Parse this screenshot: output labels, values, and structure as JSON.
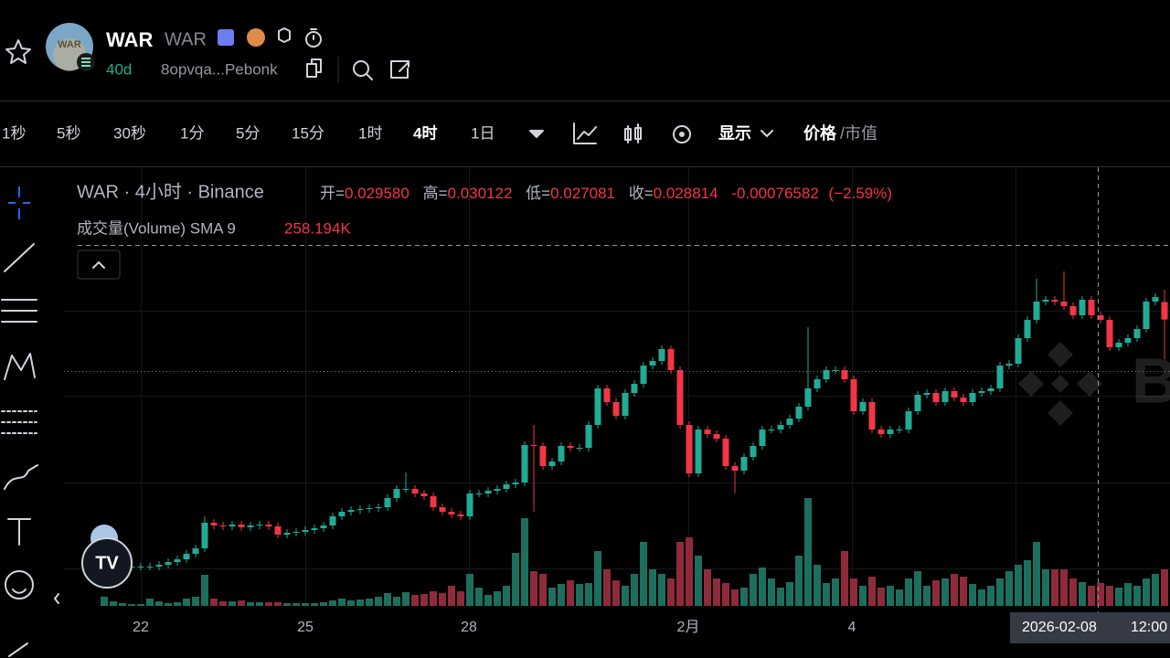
{
  "header": {
    "symbol": "WAR",
    "symbol_sub": "WAR",
    "age": "40d",
    "address": "8opvqa...Pebonk"
  },
  "toolbar": {
    "intervals": [
      "1秒",
      "5秒",
      "30秒",
      "1分",
      "5分",
      "15分",
      "1时",
      "4时",
      "1日"
    ],
    "display_menu": "显示",
    "price_toggle": "价格",
    "market_cap_toggle": "/市值"
  },
  "legend": {
    "title": "WAR · 4小时 · Binance",
    "open_label": "开=",
    "open": "0.029580",
    "high_label": "高=",
    "high": "0.030122",
    "low_label": "低=",
    "low": "0.027081",
    "close_label": "收=",
    "close": "0.028814",
    "change": "-0.00076582",
    "change_pct": "(−2.59%)"
  },
  "volume_legend": {
    "label": "成交量(Volume) SMA 9",
    "value": "258.194K"
  },
  "chart_data": {
    "type": "candlestick",
    "up_color": "#22ab94",
    "down_color": "#f23645",
    "volume_up_color": "#1d6f5d",
    "volume_down_color": "#8e2b3b",
    "open": [
      0.018,
      0.018,
      0.018,
      0.018,
      0.018,
      0.018,
      0.018,
      0.01808,
      0.0182,
      0.01832,
      0.01856,
      0.0188,
      0.01992,
      0.0198,
      0.01976,
      0.01984,
      0.01972,
      0.0198,
      0.01984,
      0.01976,
      0.0194,
      0.01948,
      0.01952,
      0.0196,
      0.01968,
      0.0198,
      0.0202,
      0.0204,
      0.02048,
      0.02052,
      0.02056,
      0.0206,
      0.021,
      0.0214,
      0.0214,
      0.0212,
      0.02108,
      0.0206,
      0.0204,
      0.02028,
      0.0202,
      0.0212,
      0.0212,
      0.02132,
      0.0214,
      0.0216,
      0.02168,
      0.02332,
      0.02328,
      0.0224,
      0.0226,
      0.02328,
      0.0232,
      0.0232,
      0.0242,
      0.0258,
      0.0252,
      0.0246,
      0.0256,
      0.026,
      0.0268,
      0.027,
      0.02752,
      0.0266,
      0.0242,
      0.02208,
      0.024,
      0.0238,
      0.0236,
      0.0224,
      0.0222,
      0.0228,
      0.02328,
      0.024,
      0.024,
      0.0242,
      0.02448,
      0.025,
      0.0258,
      0.0262,
      0.0266,
      0.0266,
      0.0262,
      0.0248,
      0.0252,
      0.024,
      0.0238,
      0.024,
      0.024,
      0.0248,
      0.02552,
      0.0256,
      0.0252,
      0.02568,
      0.0254,
      0.0252,
      0.0256,
      0.02568,
      0.0258,
      0.0268,
      0.02688,
      0.028,
      0.0288,
      0.0296,
      0.02968,
      0.0296,
      0.0294,
      0.029,
      0.02968,
      0.029,
      0.0288,
      0.0276,
      0.0278,
      0.028,
      0.0284,
      0.0296,
      0.02958
    ],
    "high": [
      0.01816,
      0.01816,
      0.01816,
      0.01816,
      0.01816,
      0.01816,
      0.01824,
      0.01836,
      0.01848,
      0.01872,
      0.01896,
      0.0202,
      0.02008,
      0.01996,
      0.02,
      0.02,
      0.01996,
      0.02,
      0.02,
      0.01992,
      0.01964,
      0.01968,
      0.01976,
      0.01984,
      0.01996,
      0.02036,
      0.02056,
      0.02064,
      0.02068,
      0.02072,
      0.02076,
      0.02116,
      0.02156,
      0.02212,
      0.02156,
      0.02136,
      0.02124,
      0.02076,
      0.02056,
      0.02044,
      0.02136,
      0.02136,
      0.02148,
      0.02156,
      0.02176,
      0.02184,
      0.02348,
      0.0242,
      0.02344,
      0.02276,
      0.02344,
      0.02344,
      0.02336,
      0.02436,
      0.02596,
      0.02596,
      0.02536,
      0.02576,
      0.02616,
      0.02696,
      0.02716,
      0.02768,
      0.02768,
      0.02676,
      0.02436,
      0.02416,
      0.02416,
      0.02396,
      0.02376,
      0.02256,
      0.02296,
      0.02344,
      0.02416,
      0.02416,
      0.02436,
      0.02464,
      0.02516,
      0.02848,
      0.02636,
      0.02676,
      0.02676,
      0.02676,
      0.02636,
      0.02536,
      0.02536,
      0.02416,
      0.02416,
      0.02416,
      0.02496,
      0.02568,
      0.02576,
      0.02576,
      0.02584,
      0.02584,
      0.02556,
      0.02576,
      0.02584,
      0.02596,
      0.02696,
      0.02704,
      0.02816,
      0.02896,
      0.0306,
      0.02984,
      0.02984,
      0.03092,
      0.02956,
      0.02984,
      0.02984,
      0.02916,
      0.02896,
      0.02796,
      0.02816,
      0.02856,
      0.02976,
      0.02996,
      0.030122
    ],
    "low": [
      0.01784,
      0.01784,
      0.01784,
      0.01784,
      0.01784,
      0.01784,
      0.01784,
      0.01792,
      0.01804,
      0.01816,
      0.0184,
      0.01864,
      0.01964,
      0.0196,
      0.0196,
      0.01956,
      0.01956,
      0.01964,
      0.0196,
      0.01924,
      0.01924,
      0.01932,
      0.01936,
      0.01944,
      0.01952,
      0.01964,
      0.02004,
      0.02024,
      0.02032,
      0.02036,
      0.0204,
      0.02044,
      0.02084,
      0.02124,
      0.02104,
      0.02092,
      0.02044,
      0.02024,
      0.02012,
      0.02004,
      0.02004,
      0.02104,
      0.02104,
      0.02116,
      0.02124,
      0.02144,
      0.02152,
      0.0204,
      0.02224,
      0.02224,
      0.02244,
      0.02304,
      0.02304,
      0.02304,
      0.02404,
      0.02504,
      0.02444,
      0.02444,
      0.02544,
      0.02584,
      0.02664,
      0.02684,
      0.02644,
      0.02404,
      0.02192,
      0.02192,
      0.02364,
      0.02344,
      0.02224,
      0.0212,
      0.02204,
      0.02264,
      0.02312,
      0.02384,
      0.02384,
      0.02404,
      0.02432,
      0.02484,
      0.02564,
      0.02604,
      0.02644,
      0.02604,
      0.02464,
      0.02464,
      0.02384,
      0.02364,
      0.02364,
      0.02384,
      0.02384,
      0.02464,
      0.02536,
      0.02504,
      0.02504,
      0.02524,
      0.02504,
      0.02504,
      0.02544,
      0.02552,
      0.02564,
      0.02664,
      0.02672,
      0.02784,
      0.02864,
      0.02944,
      0.02944,
      0.02924,
      0.02884,
      0.02884,
      0.02884,
      0.02864,
      0.02744,
      0.02744,
      0.02764,
      0.02784,
      0.02824,
      0.02944,
      0.027081
    ],
    "close": [
      0.018,
      0.018,
      0.018,
      0.018,
      0.018,
      0.018,
      0.01808,
      0.0182,
      0.01832,
      0.01856,
      0.0188,
      0.01992,
      0.0198,
      0.01976,
      0.01984,
      0.01972,
      0.0198,
      0.01984,
      0.01976,
      0.0194,
      0.01948,
      0.01952,
      0.0196,
      0.01968,
      0.0198,
      0.0202,
      0.0204,
      0.02048,
      0.02052,
      0.02056,
      0.0206,
      0.021,
      0.0214,
      0.0214,
      0.0212,
      0.02108,
      0.0206,
      0.0204,
      0.02028,
      0.0202,
      0.0212,
      0.0212,
      0.02132,
      0.0214,
      0.0216,
      0.02168,
      0.02332,
      0.02328,
      0.0224,
      0.0226,
      0.02328,
      0.0232,
      0.0232,
      0.0242,
      0.0258,
      0.0252,
      0.0246,
      0.0256,
      0.026,
      0.0268,
      0.027,
      0.02752,
      0.0266,
      0.0242,
      0.02208,
      0.024,
      0.0238,
      0.0236,
      0.0224,
      0.0222,
      0.0228,
      0.02328,
      0.024,
      0.024,
      0.0242,
      0.02448,
      0.025,
      0.0258,
      0.0262,
      0.0266,
      0.0266,
      0.0262,
      0.0248,
      0.0252,
      0.024,
      0.0238,
      0.024,
      0.024,
      0.0248,
      0.02552,
      0.0256,
      0.0252,
      0.02568,
      0.0254,
      0.0252,
      0.0256,
      0.02568,
      0.0258,
      0.0268,
      0.02688,
      0.028,
      0.0288,
      0.0296,
      0.02968,
      0.0296,
      0.0294,
      0.029,
      0.02968,
      0.029,
      0.0288,
      0.0276,
      0.0278,
      0.028,
      0.0284,
      0.0296,
      0.0298,
      0.028814
    ],
    "volume": [
      100000,
      50000,
      30000,
      20000,
      20000,
      80000,
      50000,
      30000,
      40000,
      80000,
      100000,
      340000,
      80000,
      50000,
      50000,
      60000,
      40000,
      40000,
      40000,
      40000,
      30000,
      30000,
      30000,
      30000,
      40000,
      60000,
      80000,
      60000,
      70000,
      80000,
      100000,
      140000,
      100000,
      150000,
      120000,
      130000,
      160000,
      140000,
      220000,
      160000,
      350000,
      200000,
      120000,
      160000,
      220000,
      580000,
      960000,
      380000,
      350000,
      200000,
      240000,
      280000,
      240000,
      250000,
      600000,
      400000,
      280000,
      220000,
      350000,
      700000,
      400000,
      350000,
      300000,
      700000,
      750000,
      550000,
      400000,
      300000,
      250000,
      180000,
      200000,
      350000,
      420000,
      300000,
      200000,
      260000,
      550000,
      1180000,
      450000,
      250000,
      300000,
      600000,
      300000,
      220000,
      320000,
      200000,
      220000,
      180000,
      300000,
      380000,
      220000,
      280000,
      300000,
      350000,
      320000,
      240000,
      180000,
      220000,
      300000,
      380000,
      450000,
      500000,
      700000,
      400000,
      400000,
      400000,
      300000,
      260000,
      220000,
      250000,
      220000,
      200000,
      250000,
      220000,
      300000,
      350000,
      400000
    ],
    "x_labels": [
      "22",
      "25",
      "28",
      "2月",
      "4"
    ],
    "crosshair_date": "2026-02-08",
    "crosshair_time": "12:00"
  }
}
